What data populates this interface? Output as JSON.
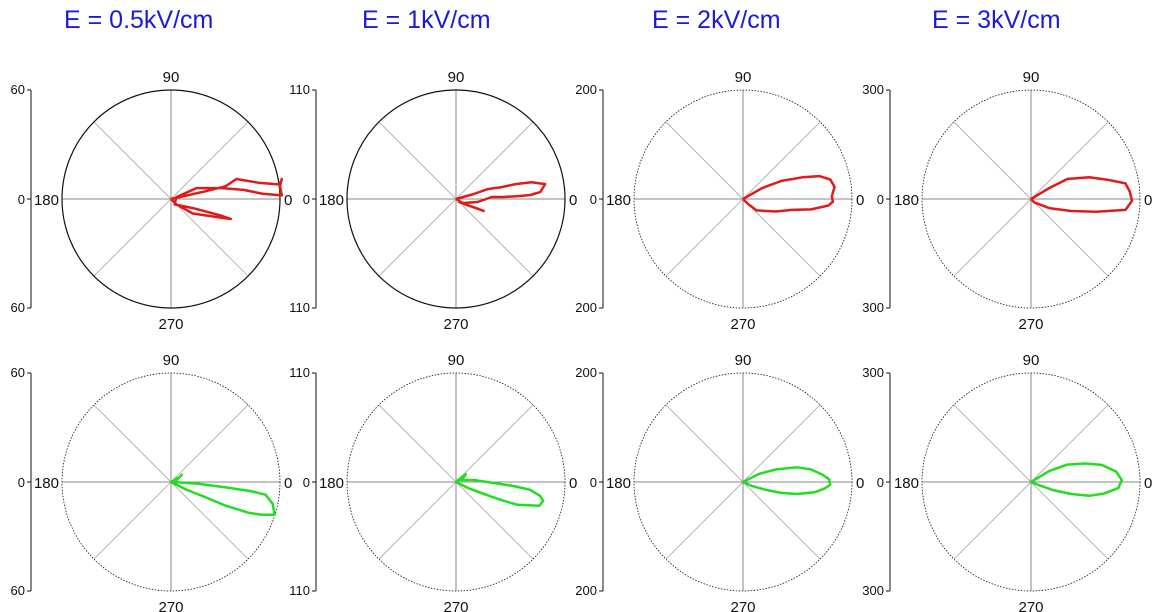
{
  "titles": [
    "E = 0.5kV/cm",
    "E = 1kV/cm",
    "E = 2kV/cm",
    "E = 3kV/cm"
  ],
  "colors": {
    "title": "#1a1adc",
    "top_series": "#e01b1b",
    "bottom_series": "#22dd22",
    "axis": "#111111",
    "spokes": "#b5b5b5"
  },
  "chart_data": [
    {
      "type": "polar",
      "row": "top",
      "column_title": "E = 0.5kV/cm",
      "rmax": 60,
      "tick_labels": [
        "60",
        "0",
        "60"
      ],
      "angle_labels": [
        "90",
        "180",
        "0",
        "270"
      ],
      "outline": "solid",
      "series": [
        {
          "color": "#e01b1b",
          "points": [
            [
              0,
              0
            ],
            [
              18,
              4
            ],
            [
              30,
              7
            ],
            [
              36,
              11
            ],
            [
              48,
              9
            ],
            [
              60,
              8
            ],
            [
              61,
              11
            ],
            [
              60,
              7
            ],
            [
              61,
              2
            ],
            [
              50,
              3
            ],
            [
              40,
              5
            ],
            [
              28,
              6
            ],
            [
              14,
              6
            ],
            [
              3,
              1
            ],
            [
              2,
              -3
            ],
            [
              12,
              -5
            ],
            [
              27,
              -9
            ],
            [
              33,
              -11
            ],
            [
              26,
              -10
            ],
            [
              12,
              -8
            ],
            [
              3,
              -3
            ],
            [
              0,
              0
            ]
          ]
        }
      ]
    },
    {
      "type": "polar",
      "row": "top",
      "column_title": "E = 1kV/cm",
      "rmax": 110,
      "tick_labels": [
        "110",
        "0",
        "110"
      ],
      "angle_labels": [
        "90",
        "180",
        "0",
        "270"
      ],
      "outline": "solid",
      "series": [
        {
          "color": "#e01b1b",
          "points": [
            [
              0,
              0
            ],
            [
              18,
              5
            ],
            [
              32,
              10
            ],
            [
              46,
              12
            ],
            [
              60,
              15
            ],
            [
              76,
              17
            ],
            [
              90,
              15
            ],
            [
              85,
              7
            ],
            [
              75,
              4
            ],
            [
              65,
              3
            ],
            [
              48,
              2
            ],
            [
              36,
              2
            ],
            [
              22,
              -3
            ],
            [
              8,
              -4
            ],
            [
              3,
              -3
            ],
            [
              14,
              -7
            ],
            [
              28,
              -12
            ],
            [
              20,
              -9
            ],
            [
              8,
              -5
            ],
            [
              2,
              -1
            ],
            [
              0,
              0
            ]
          ]
        }
      ]
    },
    {
      "type": "polar",
      "row": "top",
      "column_title": "E = 2kV/cm",
      "rmax": 200,
      "tick_labels": [
        "200",
        "0",
        "200"
      ],
      "angle_labels": [
        "90",
        "180",
        "0",
        "270"
      ],
      "outline": "dotted",
      "series": [
        {
          "color": "#e01b1b",
          "points": [
            [
              0,
              0
            ],
            [
              35,
              20
            ],
            [
              70,
              33
            ],
            [
              110,
              40
            ],
            [
              140,
              42
            ],
            [
              160,
              36
            ],
            [
              168,
              22
            ],
            [
              163,
              5
            ],
            [
              165,
              -5
            ],
            [
              157,
              -12
            ],
            [
              125,
              -19
            ],
            [
              90,
              -20
            ],
            [
              60,
              -23
            ],
            [
              25,
              -21
            ],
            [
              10,
              -10
            ],
            [
              0,
              0
            ]
          ]
        }
      ]
    },
    {
      "type": "polar",
      "row": "top",
      "column_title": "E = 3kV/cm",
      "rmax": 300,
      "tick_labels": [
        "300",
        "0",
        "300"
      ],
      "angle_labels": [
        "90",
        "180",
        "0",
        "270"
      ],
      "outline": "dotted",
      "series": [
        {
          "color": "#e01b1b",
          "points": [
            [
              0,
              0
            ],
            [
              50,
              30
            ],
            [
              100,
              55
            ],
            [
              160,
              60
            ],
            [
              210,
              53
            ],
            [
              260,
              43
            ],
            [
              272,
              20
            ],
            [
              278,
              -5
            ],
            [
              260,
              -30
            ],
            [
              180,
              -35
            ],
            [
              110,
              -33
            ],
            [
              50,
              -25
            ],
            [
              10,
              -10
            ],
            [
              0,
              0
            ]
          ]
        }
      ]
    },
    {
      "type": "polar",
      "row": "bottom",
      "column_title": "E = 0.5kV/cm",
      "rmax": 60,
      "tick_labels": [
        "60",
        "0",
        "60"
      ],
      "angle_labels": [
        "90",
        "180",
        "0",
        "270"
      ],
      "outline": "dotted",
      "series": [
        {
          "color": "#22dd22",
          "points": [
            [
              0,
              0
            ],
            [
              5,
              3
            ],
            [
              6,
              4
            ],
            [
              3,
              1
            ],
            [
              1,
              0
            ],
            [
              15,
              -1
            ],
            [
              30,
              -3
            ],
            [
              44,
              -5
            ],
            [
              52,
              -7
            ],
            [
              56,
              -12
            ],
            [
              57,
              -18
            ],
            [
              50,
              -18
            ],
            [
              43,
              -17
            ],
            [
              30,
              -13
            ],
            [
              18,
              -8
            ],
            [
              8,
              -4
            ],
            [
              0,
              0
            ]
          ]
        }
      ]
    },
    {
      "type": "polar",
      "row": "bottom",
      "column_title": "E = 1kV/cm",
      "rmax": 110,
      "tick_labels": [
        "110",
        "0",
        "110"
      ],
      "angle_labels": [
        "90",
        "180",
        "0",
        "270"
      ],
      "outline": "dotted",
      "series": [
        {
          "color": "#22dd22",
          "points": [
            [
              0,
              0
            ],
            [
              6,
              5
            ],
            [
              10,
              8
            ],
            [
              8,
              5
            ],
            [
              4,
              2
            ],
            [
              18,
              2
            ],
            [
              38,
              -1
            ],
            [
              58,
              -4
            ],
            [
              75,
              -8
            ],
            [
              85,
              -14
            ],
            [
              88,
              -19
            ],
            [
              84,
              -24
            ],
            [
              62,
              -23
            ],
            [
              45,
              -18
            ],
            [
              28,
              -12
            ],
            [
              12,
              -6
            ],
            [
              0,
              0
            ]
          ]
        }
      ]
    },
    {
      "type": "polar",
      "row": "bottom",
      "column_title": "E = 2kV/cm",
      "rmax": 200,
      "tick_labels": [
        "200",
        "0",
        "200"
      ],
      "angle_labels": [
        "90",
        "180",
        "0",
        "270"
      ],
      "outline": "dotted",
      "series": [
        {
          "color": "#22dd22",
          "points": [
            [
              0,
              0
            ],
            [
              30,
              15
            ],
            [
              60,
              23
            ],
            [
              100,
              27
            ],
            [
              125,
              23
            ],
            [
              145,
              14
            ],
            [
              158,
              5
            ],
            [
              160,
              -5
            ],
            [
              150,
              -12
            ],
            [
              130,
              -19
            ],
            [
              100,
              -22
            ],
            [
              70,
              -20
            ],
            [
              40,
              -14
            ],
            [
              15,
              -7
            ],
            [
              0,
              0
            ]
          ]
        }
      ]
    },
    {
      "type": "polar",
      "row": "bottom",
      "column_title": "E = 3kV/cm",
      "rmax": 300,
      "tick_labels": [
        "300",
        "0",
        "300"
      ],
      "angle_labels": [
        "90",
        "180",
        "0",
        "270"
      ],
      "outline": "dotted",
      "series": [
        {
          "color": "#22dd22",
          "points": [
            [
              0,
              0
            ],
            [
              50,
              30
            ],
            [
              100,
              48
            ],
            [
              150,
              51
            ],
            [
              195,
              47
            ],
            [
              235,
              28
            ],
            [
              250,
              5
            ],
            [
              240,
              -17
            ],
            [
              200,
              -32
            ],
            [
              160,
              -38
            ],
            [
              110,
              -33
            ],
            [
              60,
              -22
            ],
            [
              20,
              -8
            ],
            [
              0,
              0
            ]
          ]
        }
      ]
    }
  ]
}
